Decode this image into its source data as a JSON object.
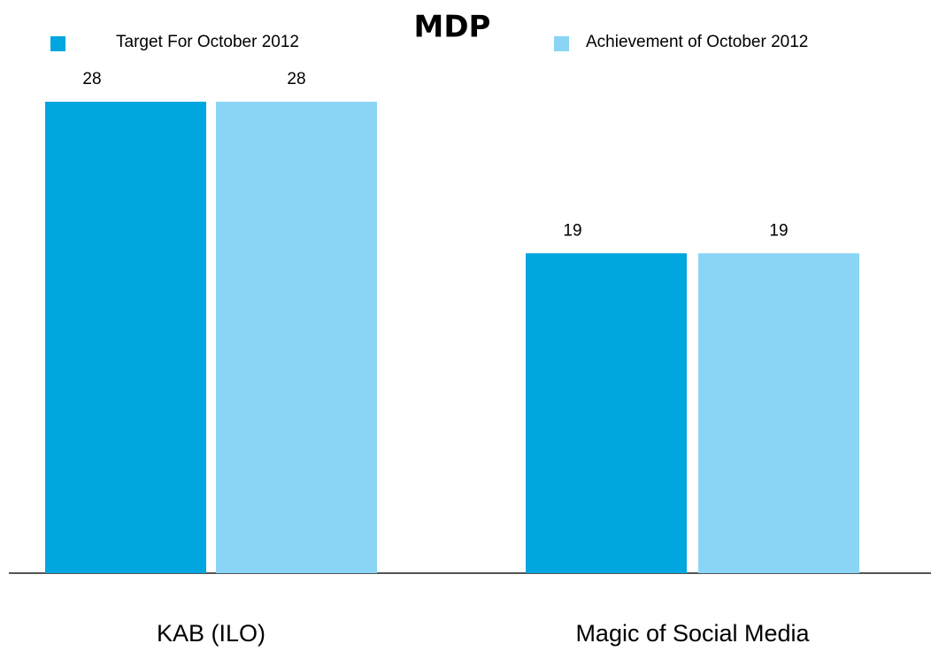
{
  "chart_data": {
    "type": "bar",
    "title": "MDP",
    "categories": [
      "KAB (ILO)",
      "Magic of Social Media"
    ],
    "series": [
      {
        "name": "Target For October 2012",
        "color": "#00a6df",
        "values": [
          28,
          19
        ]
      },
      {
        "name": "Achievement of October 2012",
        "color": "#8ad5f5",
        "values": [
          28,
          19
        ]
      }
    ]
  }
}
